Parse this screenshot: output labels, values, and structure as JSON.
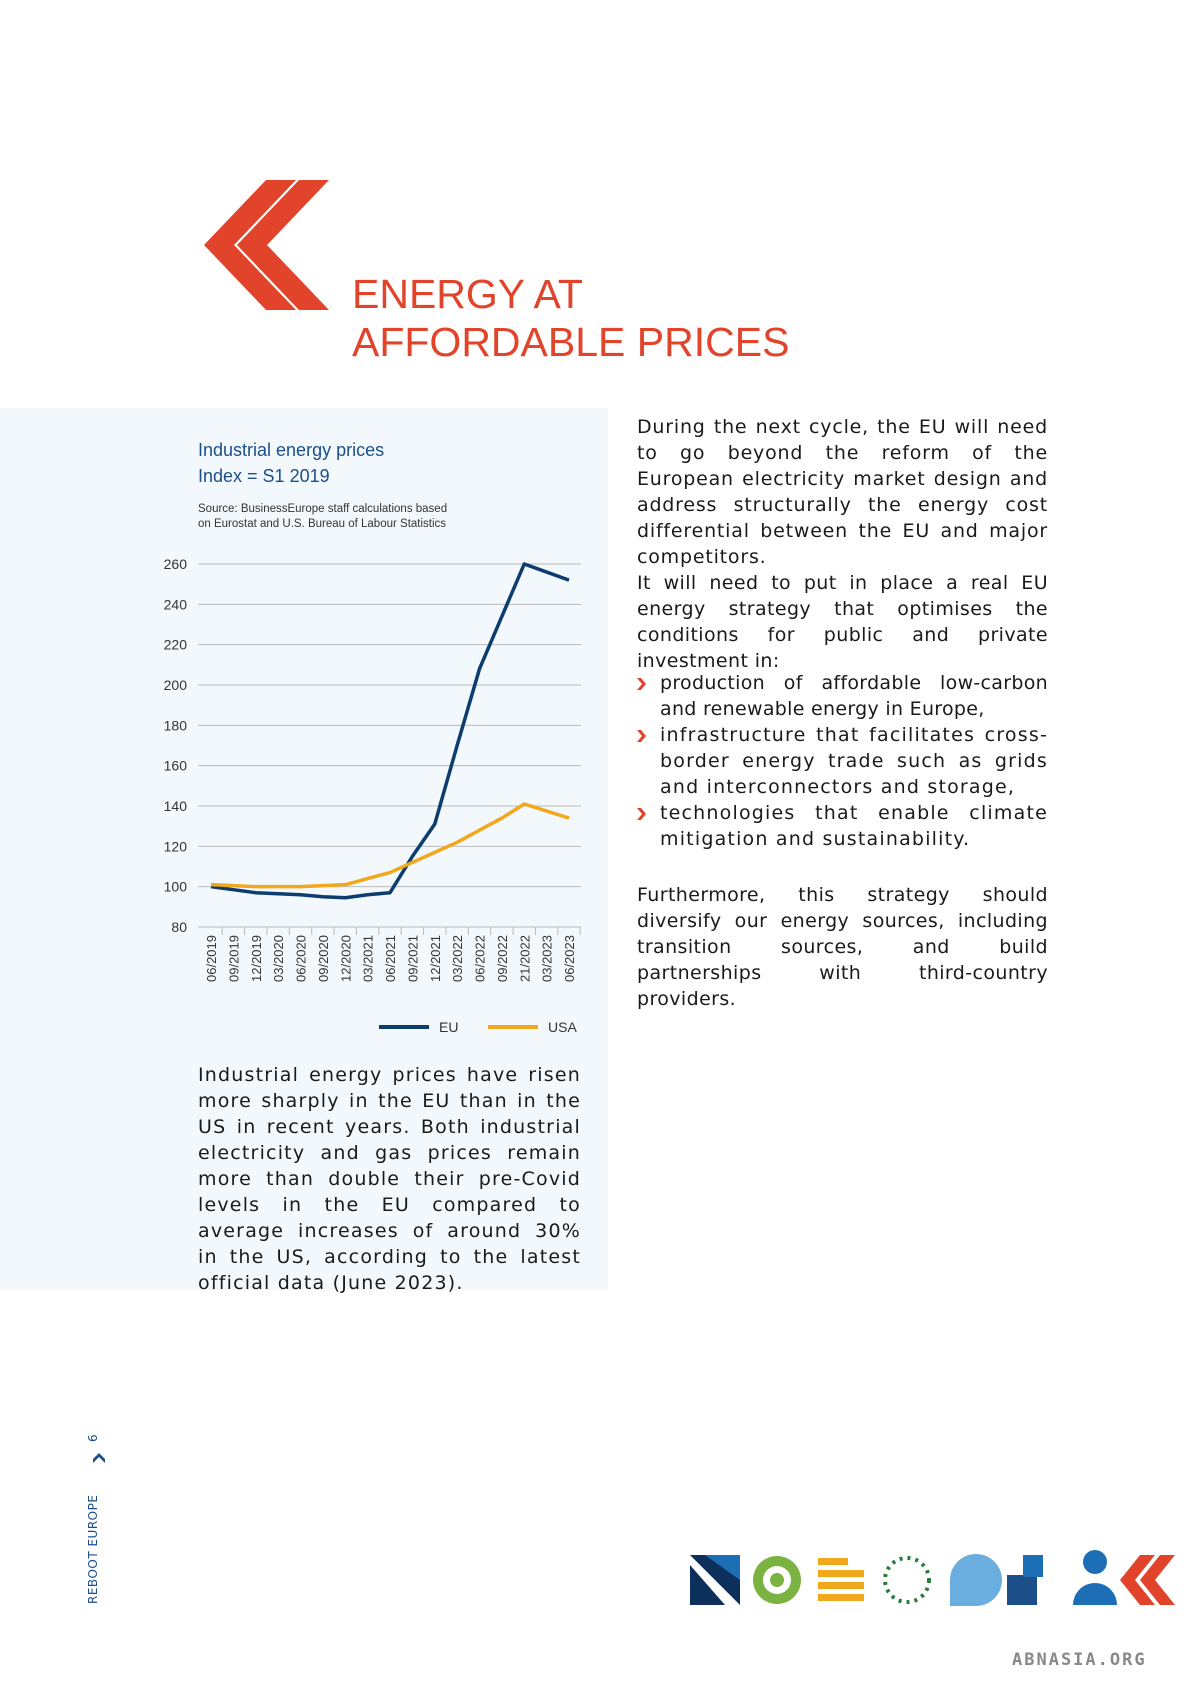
{
  "header": {
    "title_lines": [
      "ENERGY AT",
      "AFFORDABLE PRICES"
    ]
  },
  "chart_data": {
    "type": "line",
    "title": "Industrial energy prices",
    "subtitle": "Index = S1 2019",
    "source": [
      "Source: BusinessEurope staff calculations based",
      "on Eurostat and U.S. Bureau of Labour Statistics"
    ],
    "categories": [
      "06/2019",
      "09/2019",
      "12/2019",
      "03/2020",
      "06/2020",
      "09/2020",
      "12/2020",
      "03/2021",
      "06/2021",
      "09/2021",
      "12/2021",
      "03/2022",
      "06/2022",
      "09/2022",
      "21/2022",
      "03/2023",
      "06/2023"
    ],
    "series": [
      {
        "name": "EU",
        "color": "#0d3c6e",
        "values": [
          100,
          98.5,
          97,
          96.5,
          96,
          95,
          94.5,
          96,
          97,
          115,
          131,
          170,
          208,
          234,
          260,
          256,
          252
        ]
      },
      {
        "name": "USA",
        "color": "#f2a81d",
        "values": [
          101,
          100.5,
          100,
          100,
          100,
          100.5,
          101,
          104,
          107,
          112,
          117,
          122,
          128,
          134,
          141,
          137.5,
          134
        ]
      }
    ],
    "ylim": [
      80,
      260
    ],
    "yticks": [
      80,
      100,
      120,
      140,
      160,
      180,
      200,
      220,
      240,
      260
    ],
    "grid": true,
    "legend": "bottom"
  },
  "caption": "Industrial energy prices have risen more sharply in the EU than in the US in recent years. Both industrial electricity and gas prices remain more than double their pre-Covid levels in the EU compared to average increases of around 30% in the US, according to the latest official data (June 2023).",
  "body": {
    "paragraphs": [
      "During the next cycle, the EU will need to go beyond the reform of the European electricity market design and address structurally the energy cost differential between the EU and major competitors.",
      "It will need to put in place a real EU energy strategy that optimises the conditions for public and private investment in:"
    ],
    "bullets": [
      "production of affordable low-carbon and renewable energy in Europe,",
      "infrastructure that facilitates cross-border energy trade such as grids and interconnectors and storage,",
      "technologies that enable climate mitigation and sustainability."
    ],
    "closing": "Furthermore, this strategy should diversify our energy sources, including transition sources, and build partnerships with third-country providers."
  },
  "footer": {
    "running_title": "REBOOT EUROPE",
    "page_number": "6"
  },
  "watermark": "ABNASIA.ORG"
}
